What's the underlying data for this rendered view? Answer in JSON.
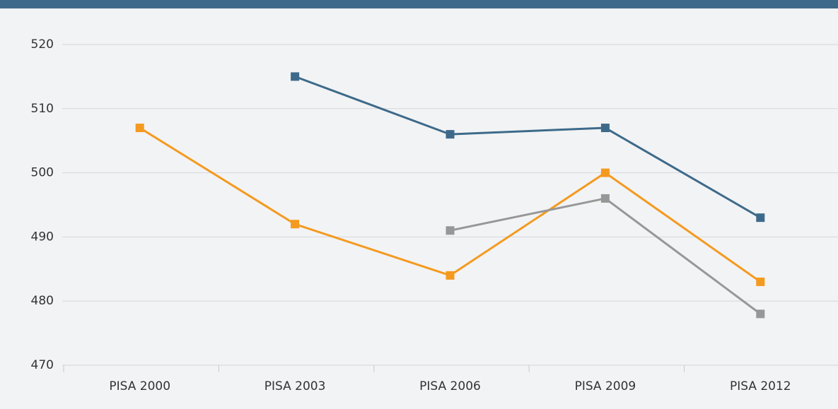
{
  "chart_data": {
    "type": "line",
    "categories": [
      "PISA 2000",
      "PISA 2003",
      "PISA 2006",
      "PISA 2009",
      "PISA 2012"
    ],
    "series": [
      {
        "color": "#3d6a8a",
        "values": [
          null,
          515,
          506,
          507,
          493
        ]
      },
      {
        "color": "#f49a1f",
        "values": [
          507,
          492,
          484,
          500,
          483
        ]
      },
      {
        "color": "#979797",
        "values": [
          null,
          null,
          491,
          496,
          478
        ]
      }
    ],
    "ylim": [
      470,
      520
    ],
    "yticks": [
      470,
      480,
      490,
      500,
      510,
      520
    ],
    "grid": true
  }
}
